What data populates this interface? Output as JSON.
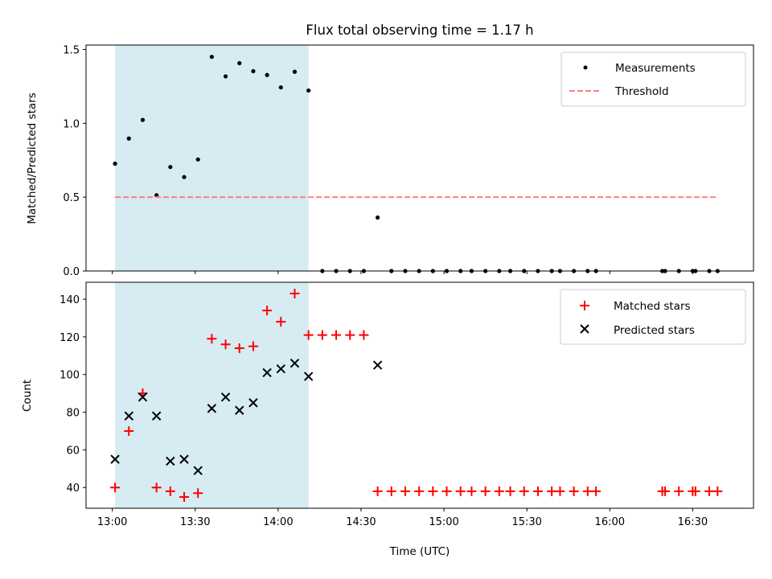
{
  "chart_data": {
    "title": "Flux total observing time = 1.17 h",
    "xlabel": "Time (UTC)",
    "x_tick_labels": [
      "13:00",
      "13:30",
      "14:00",
      "14:30",
      "15:00",
      "15:30",
      "16:00",
      "16:30"
    ],
    "x_tick_minutes": [
      780,
      810,
      840,
      870,
      900,
      930,
      960,
      990
    ],
    "xlim_minutes": [
      770.5,
      1012
    ],
    "shaded_interval_minutes": [
      781,
      851
    ],
    "shade_color": "#add8e6",
    "subplots": [
      {
        "type": "scatter",
        "ylabel": "Matched/Predicted stars",
        "ylim": [
          0,
          1.53
        ],
        "y_tick_values": [
          0,
          0.5,
          1.0,
          1.5
        ],
        "y_tick_labels": [
          "0.0",
          "0.5",
          "1.0",
          "1.5"
        ],
        "show_x_tick_labels": false,
        "legend_position": "upper right",
        "series": [
          {
            "name": "Measurements",
            "marker": "dot",
            "color": "#000000",
            "x": [
              781,
              786,
              791,
              796,
              801,
              806,
              811,
              816,
              821,
              826,
              831,
              836,
              841,
              846,
              851,
              876
            ],
            "y": [
              0.727,
              0.897,
              1.023,
              0.513,
              0.704,
              0.636,
              0.755,
              1.45,
              1.318,
              1.407,
              1.353,
              1.327,
              1.243,
              1.349,
              1.222,
              0.362
            ]
          },
          {
            "name": "Measurements (zero)",
            "legend": false,
            "marker": "dot",
            "color": "#000000",
            "x": [
              856,
              861,
              866,
              871,
              881,
              886,
              891,
              896,
              901,
              906,
              910,
              915,
              920,
              924,
              929,
              934,
              939,
              942,
              947,
              952,
              955,
              979,
              980,
              985,
              990,
              991,
              996,
              999
            ],
            "y": [
              0,
              0,
              0,
              0,
              0,
              0,
              0,
              0,
              0,
              0,
              0,
              0,
              0,
              0,
              0,
              0,
              0,
              0,
              0,
              0,
              0,
              0,
              0,
              0,
              0,
              0,
              0,
              0
            ]
          },
          {
            "name": "Threshold",
            "type": "line",
            "style": "dashed",
            "color": "#ff8080",
            "x": [
              781,
              999
            ],
            "y": [
              0.5,
              0.5
            ]
          }
        ]
      },
      {
        "type": "scatter",
        "ylabel": "Count",
        "ylim": [
          29,
          149
        ],
        "y_tick_values": [
          40,
          60,
          80,
          100,
          120,
          140
        ],
        "y_tick_labels": [
          "40",
          "60",
          "80",
          "100",
          "120",
          "140"
        ],
        "show_x_tick_labels": true,
        "legend_position": "upper right",
        "series": [
          {
            "name": "Matched stars",
            "marker": "plus",
            "color": "#ff0000",
            "x": [
              781,
              786,
              791,
              796,
              801,
              806,
              811,
              816,
              821,
              826,
              831,
              836,
              841,
              846,
              851,
              856,
              861,
              866,
              871,
              876,
              881,
              886,
              891,
              896,
              901,
              906,
              910,
              915,
              920,
              924,
              929,
              934,
              939,
              942,
              947,
              952,
              955,
              979,
              980,
              985,
              990,
              991,
              996,
              999
            ],
            "y": [
              40,
              70,
              90,
              40,
              38,
              35,
              37,
              119,
              116,
              114,
              115,
              134,
              128,
              143,
              121,
              121,
              121,
              121,
              121,
              38,
              38,
              38,
              38,
              38,
              38,
              38,
              38,
              38,
              38,
              38,
              38,
              38,
              38,
              38,
              38,
              38,
              38,
              38,
              38,
              38,
              38,
              38,
              38,
              38
            ]
          },
          {
            "name": "Predicted stars",
            "marker": "x",
            "color": "#000000",
            "x": [
              781,
              786,
              791,
              796,
              801,
              806,
              811,
              816,
              821,
              826,
              831,
              836,
              841,
              846,
              851,
              876
            ],
            "y": [
              55,
              78,
              88,
              78,
              54,
              55,
              49,
              82,
              88,
              81,
              85,
              101,
              103,
              106,
              99,
              105
            ]
          }
        ]
      }
    ]
  }
}
